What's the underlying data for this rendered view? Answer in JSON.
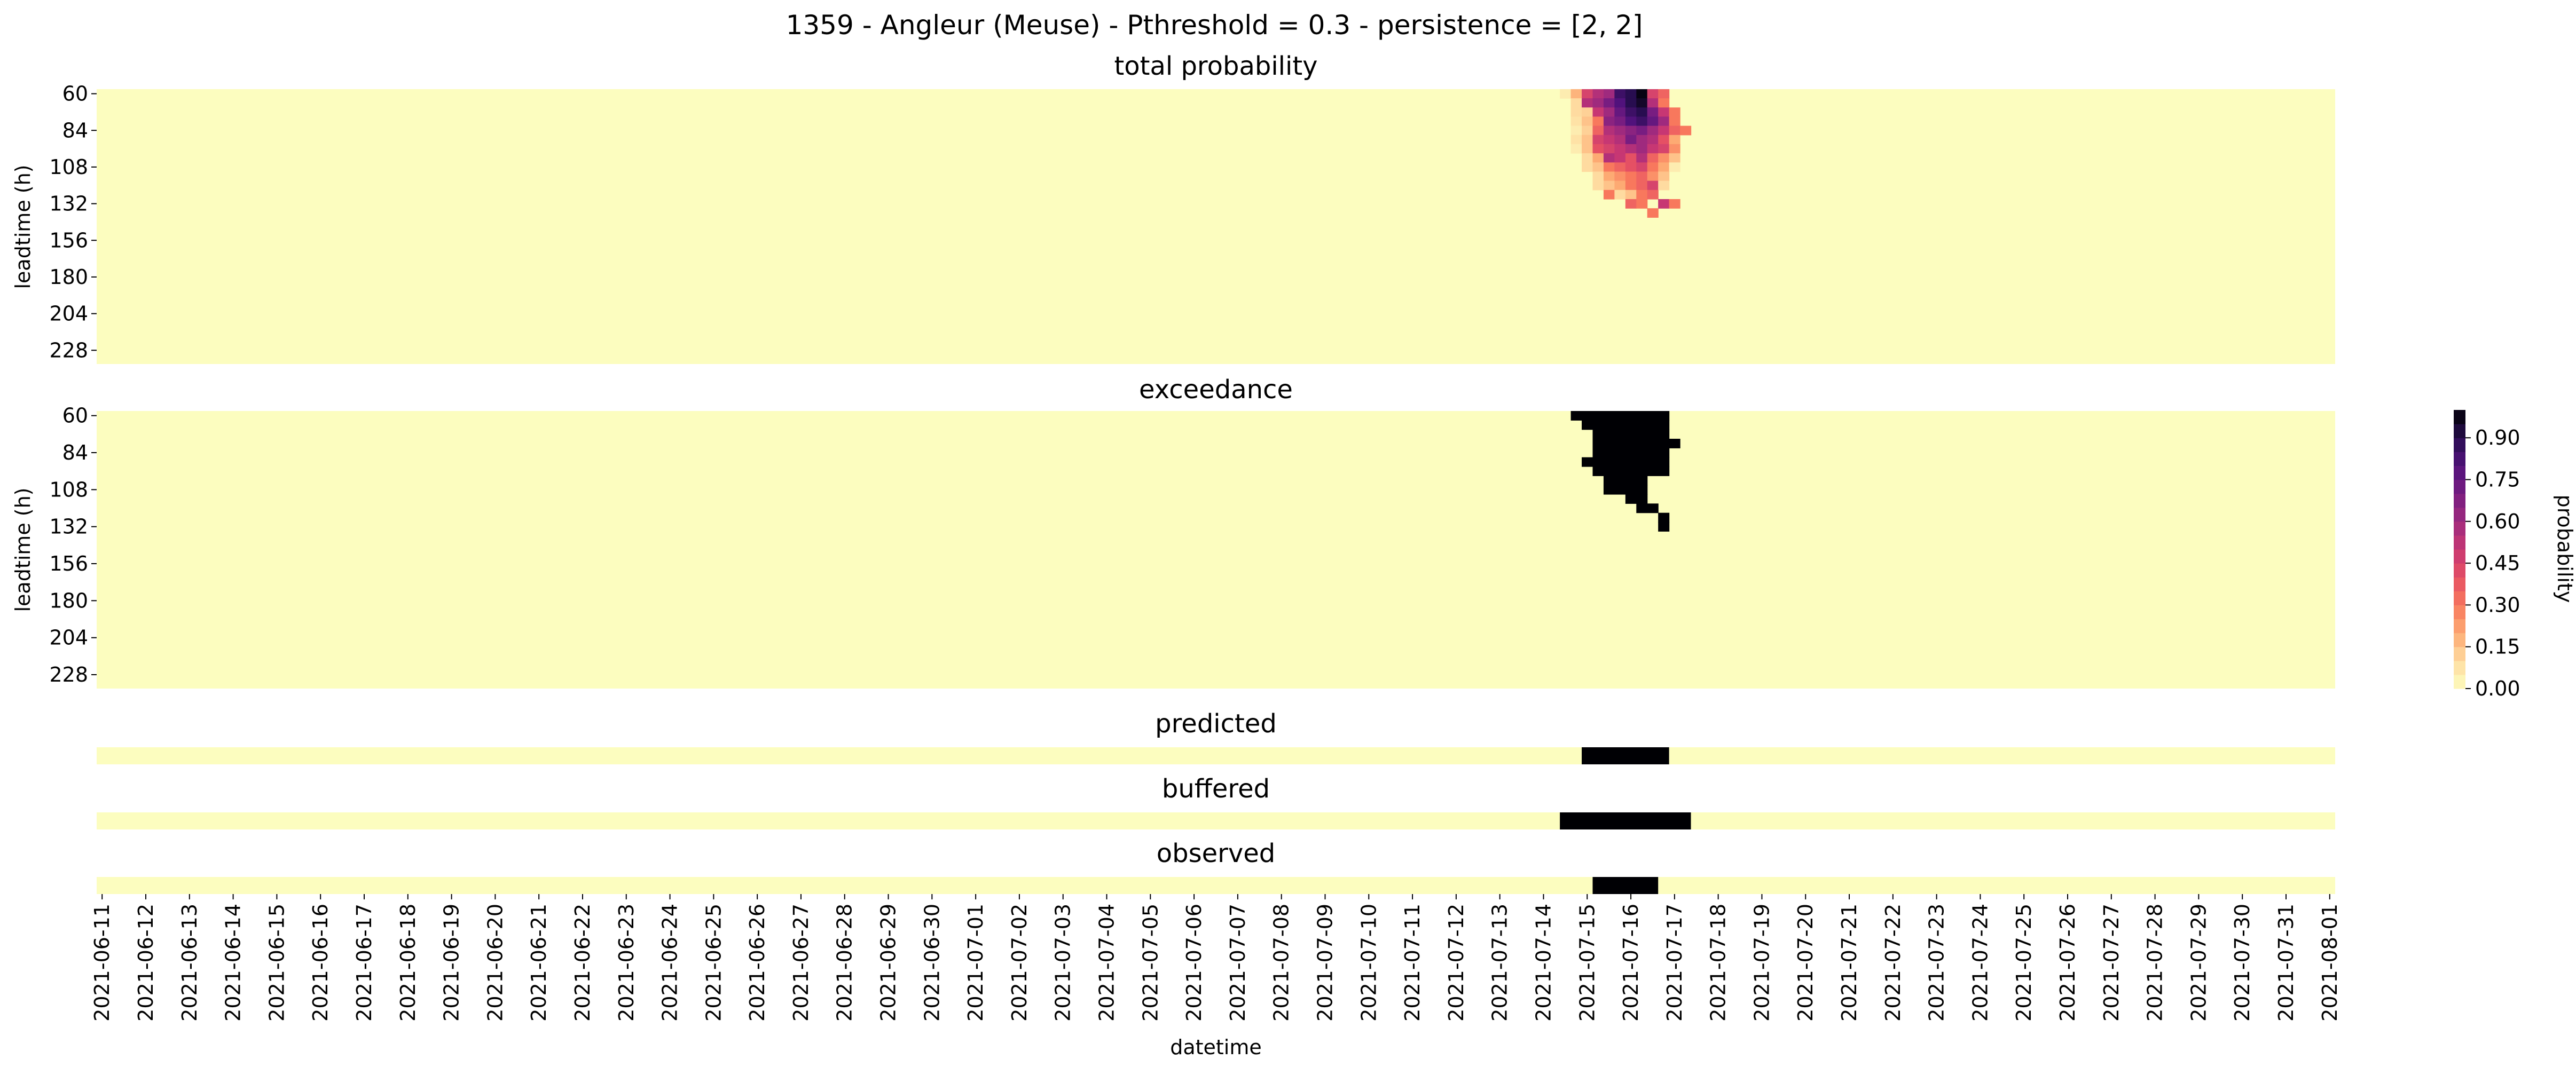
{
  "title": "1359 - Angleur (Meuse) - Pthreshold = 0.3 - persistence = [2, 2]",
  "colors": {
    "background": "#fcfdbf",
    "max": "#000004"
  },
  "chart_data": [
    {
      "type": "heatmap",
      "title": "total probability",
      "ylabel": "leadtime (h)",
      "yticks": [
        "60",
        "84",
        "108",
        "132",
        "156",
        "180",
        "204",
        "228"
      ],
      "y_range": [
        60,
        240
      ],
      "step_hours": 6,
      "x_range": [
        "2021-06-11",
        "2021-08-01"
      ],
      "colormap": "magma_r",
      "cells": [
        {
          "t": "2021-07-14 12:00",
          "l": 60,
          "v": 0.05
        },
        {
          "t": "2021-07-14 18:00",
          "l": 60,
          "v": 0.18
        },
        {
          "t": "2021-07-15 00:00",
          "l": 60,
          "v": 0.45
        },
        {
          "t": "2021-07-15 06:00",
          "l": 60,
          "v": 0.55
        },
        {
          "t": "2021-07-15 12:00",
          "l": 60,
          "v": 0.6
        },
        {
          "t": "2021-07-15 18:00",
          "l": 60,
          "v": 0.85
        },
        {
          "t": "2021-07-16 00:00",
          "l": 60,
          "v": 0.9
        },
        {
          "t": "2021-07-16 06:00",
          "l": 60,
          "v": 0.98
        },
        {
          "t": "2021-07-16 12:00",
          "l": 60,
          "v": 0.45
        },
        {
          "t": "2021-07-16 18:00",
          "l": 60,
          "v": 0.35
        },
        {
          "t": "2021-07-14 18:00",
          "l": 66,
          "v": 0.1
        },
        {
          "t": "2021-07-15 00:00",
          "l": 66,
          "v": 0.55
        },
        {
          "t": "2021-07-15 06:00",
          "l": 66,
          "v": 0.6
        },
        {
          "t": "2021-07-15 12:00",
          "l": 66,
          "v": 0.7
        },
        {
          "t": "2021-07-15 18:00",
          "l": 66,
          "v": 0.8
        },
        {
          "t": "2021-07-16 00:00",
          "l": 66,
          "v": 0.9
        },
        {
          "t": "2021-07-16 06:00",
          "l": 66,
          "v": 0.95
        },
        {
          "t": "2021-07-16 12:00",
          "l": 66,
          "v": 0.55
        },
        {
          "t": "2021-07-16 18:00",
          "l": 66,
          "v": 0.3
        },
        {
          "t": "2021-07-14 18:00",
          "l": 72,
          "v": 0.1
        },
        {
          "t": "2021-07-15 00:00",
          "l": 72,
          "v": 0.12
        },
        {
          "t": "2021-07-15 06:00",
          "l": 72,
          "v": 0.5
        },
        {
          "t": "2021-07-15 12:00",
          "l": 72,
          "v": 0.6
        },
        {
          "t": "2021-07-15 18:00",
          "l": 72,
          "v": 0.75
        },
        {
          "t": "2021-07-16 00:00",
          "l": 72,
          "v": 0.85
        },
        {
          "t": "2021-07-16 06:00",
          "l": 72,
          "v": 0.9
        },
        {
          "t": "2021-07-16 12:00",
          "l": 72,
          "v": 0.7
        },
        {
          "t": "2021-07-16 18:00",
          "l": 72,
          "v": 0.5
        },
        {
          "t": "2021-07-17 00:00",
          "l": 72,
          "v": 0.3
        },
        {
          "t": "2021-07-14 18:00",
          "l": 78,
          "v": 0.08
        },
        {
          "t": "2021-07-15 00:00",
          "l": 78,
          "v": 0.15
        },
        {
          "t": "2021-07-15 06:00",
          "l": 78,
          "v": 0.3
        },
        {
          "t": "2021-07-15 12:00",
          "l": 78,
          "v": 0.65
        },
        {
          "t": "2021-07-15 18:00",
          "l": 78,
          "v": 0.7
        },
        {
          "t": "2021-07-16 00:00",
          "l": 78,
          "v": 0.8
        },
        {
          "t": "2021-07-16 06:00",
          "l": 78,
          "v": 0.85
        },
        {
          "t": "2021-07-16 12:00",
          "l": 78,
          "v": 0.75
        },
        {
          "t": "2021-07-16 18:00",
          "l": 78,
          "v": 0.6
        },
        {
          "t": "2021-07-17 00:00",
          "l": 78,
          "v": 0.3
        },
        {
          "t": "2021-07-14 18:00",
          "l": 84,
          "v": 0.05
        },
        {
          "t": "2021-07-15 00:00",
          "l": 84,
          "v": 0.12
        },
        {
          "t": "2021-07-15 06:00",
          "l": 84,
          "v": 0.35
        },
        {
          "t": "2021-07-15 12:00",
          "l": 84,
          "v": 0.55
        },
        {
          "t": "2021-07-15 18:00",
          "l": 84,
          "v": 0.6
        },
        {
          "t": "2021-07-16 00:00",
          "l": 84,
          "v": 0.65
        },
        {
          "t": "2021-07-16 06:00",
          "l": 84,
          "v": 0.7
        },
        {
          "t": "2021-07-16 12:00",
          "l": 84,
          "v": 0.6
        },
        {
          "t": "2021-07-16 18:00",
          "l": 84,
          "v": 0.5
        },
        {
          "t": "2021-07-17 00:00",
          "l": 84,
          "v": 0.35
        },
        {
          "t": "2021-07-17 06:00",
          "l": 84,
          "v": 0.3
        },
        {
          "t": "2021-07-14 18:00",
          "l": 90,
          "v": 0.08
        },
        {
          "t": "2021-07-15 00:00",
          "l": 90,
          "v": 0.15
        },
        {
          "t": "2021-07-15 06:00",
          "l": 90,
          "v": 0.45
        },
        {
          "t": "2021-07-15 12:00",
          "l": 90,
          "v": 0.5
        },
        {
          "t": "2021-07-15 18:00",
          "l": 90,
          "v": 0.55
        },
        {
          "t": "2021-07-16 00:00",
          "l": 90,
          "v": 0.7
        },
        {
          "t": "2021-07-16 06:00",
          "l": 90,
          "v": 0.6
        },
        {
          "t": "2021-07-16 12:00",
          "l": 90,
          "v": 0.55
        },
        {
          "t": "2021-07-16 18:00",
          "l": 90,
          "v": 0.4
        },
        {
          "t": "2021-07-17 00:00",
          "l": 90,
          "v": 0.2
        },
        {
          "t": "2021-07-14 18:00",
          "l": 96,
          "v": 0.05
        },
        {
          "t": "2021-07-15 00:00",
          "l": 96,
          "v": 0.15
        },
        {
          "t": "2021-07-15 06:00",
          "l": 96,
          "v": 0.4
        },
        {
          "t": "2021-07-15 12:00",
          "l": 96,
          "v": 0.45
        },
        {
          "t": "2021-07-15 18:00",
          "l": 96,
          "v": 0.5
        },
        {
          "t": "2021-07-16 00:00",
          "l": 96,
          "v": 0.55
        },
        {
          "t": "2021-07-16 06:00",
          "l": 96,
          "v": 0.6
        },
        {
          "t": "2021-07-16 12:00",
          "l": 96,
          "v": 0.5
        },
        {
          "t": "2021-07-16 18:00",
          "l": 96,
          "v": 0.45
        },
        {
          "t": "2021-07-17 00:00",
          "l": 96,
          "v": 0.25
        },
        {
          "t": "2021-07-15 00:00",
          "l": 102,
          "v": 0.1
        },
        {
          "t": "2021-07-15 06:00",
          "l": 102,
          "v": 0.2
        },
        {
          "t": "2021-07-15 12:00",
          "l": 102,
          "v": 0.55
        },
        {
          "t": "2021-07-15 18:00",
          "l": 102,
          "v": 0.5
        },
        {
          "t": "2021-07-16 00:00",
          "l": 102,
          "v": 0.4
        },
        {
          "t": "2021-07-16 06:00",
          "l": 102,
          "v": 0.55
        },
        {
          "t": "2021-07-16 12:00",
          "l": 102,
          "v": 0.35
        },
        {
          "t": "2021-07-16 18:00",
          "l": 102,
          "v": 0.25
        },
        {
          "t": "2021-07-17 00:00",
          "l": 102,
          "v": 0.15
        },
        {
          "t": "2021-07-15 00:00",
          "l": 108,
          "v": 0.1
        },
        {
          "t": "2021-07-15 06:00",
          "l": 108,
          "v": 0.15
        },
        {
          "t": "2021-07-15 12:00",
          "l": 108,
          "v": 0.3
        },
        {
          "t": "2021-07-15 18:00",
          "l": 108,
          "v": 0.35
        },
        {
          "t": "2021-07-16 00:00",
          "l": 108,
          "v": 0.4
        },
        {
          "t": "2021-07-16 06:00",
          "l": 108,
          "v": 0.45
        },
        {
          "t": "2021-07-16 12:00",
          "l": 108,
          "v": 0.3
        },
        {
          "t": "2021-07-16 18:00",
          "l": 108,
          "v": 0.2
        },
        {
          "t": "2021-07-17 00:00",
          "l": 108,
          "v": 0.05
        },
        {
          "t": "2021-07-15 06:00",
          "l": 114,
          "v": 0.1
        },
        {
          "t": "2021-07-15 12:00",
          "l": 114,
          "v": 0.2
        },
        {
          "t": "2021-07-15 18:00",
          "l": 114,
          "v": 0.25
        },
        {
          "t": "2021-07-16 00:00",
          "l": 114,
          "v": 0.3
        },
        {
          "t": "2021-07-16 06:00",
          "l": 114,
          "v": 0.35
        },
        {
          "t": "2021-07-16 12:00",
          "l": 114,
          "v": 0.25
        },
        {
          "t": "2021-07-16 18:00",
          "l": 114,
          "v": 0.15
        },
        {
          "t": "2021-07-15 06:00",
          "l": 120,
          "v": 0.1
        },
        {
          "t": "2021-07-15 12:00",
          "l": 120,
          "v": 0.15
        },
        {
          "t": "2021-07-15 18:00",
          "l": 120,
          "v": 0.2
        },
        {
          "t": "2021-07-16 00:00",
          "l": 120,
          "v": 0.3
        },
        {
          "t": "2021-07-16 06:00",
          "l": 120,
          "v": 0.35
        },
        {
          "t": "2021-07-16 12:00",
          "l": 120,
          "v": 0.45
        },
        {
          "t": "2021-07-16 18:00",
          "l": 120,
          "v": 0.1
        },
        {
          "t": "2021-07-15 12:00",
          "l": 126,
          "v": 0.3
        },
        {
          "t": "2021-07-15 18:00",
          "l": 126,
          "v": 0.1
        },
        {
          "t": "2021-07-16 00:00",
          "l": 126,
          "v": 0.15
        },
        {
          "t": "2021-07-16 06:00",
          "l": 126,
          "v": 0.3
        },
        {
          "t": "2021-07-16 12:00",
          "l": 126,
          "v": 0.35
        },
        {
          "t": "2021-07-16 00:00",
          "l": 132,
          "v": 0.35
        },
        {
          "t": "2021-07-16 06:00",
          "l": 132,
          "v": 0.3
        },
        {
          "t": "2021-07-16 18:00",
          "l": 132,
          "v": 0.5
        },
        {
          "t": "2021-07-17 00:00",
          "l": 132,
          "v": 0.3
        },
        {
          "t": "2021-07-16 12:00",
          "l": 138,
          "v": 0.3
        }
      ]
    },
    {
      "type": "heatmap",
      "title": "exceedance",
      "ylabel": "leadtime (h)",
      "yticks": [
        "60",
        "84",
        "108",
        "132",
        "156",
        "180",
        "204",
        "228"
      ],
      "y_range": [
        60,
        240
      ],
      "step_hours": 6,
      "x_range": [
        "2021-06-11",
        "2021-08-01"
      ],
      "rows": [
        {
          "l": 60,
          "from": "2021-07-14 18:00",
          "to": "2021-07-16 18:00"
        },
        {
          "l": 66,
          "from": "2021-07-15 00:00",
          "to": "2021-07-16 18:00"
        },
        {
          "l": 72,
          "from": "2021-07-15 06:00",
          "to": "2021-07-16 18:00"
        },
        {
          "l": 78,
          "from": "2021-07-15 06:00",
          "to": "2021-07-17 00:00"
        },
        {
          "l": 84,
          "from": "2021-07-15 06:00",
          "to": "2021-07-16 18:00"
        },
        {
          "l": 90,
          "from": "2021-07-15 00:00",
          "to": "2021-07-16 18:00"
        },
        {
          "l": 96,
          "from": "2021-07-15 06:00",
          "to": "2021-07-16 18:00"
        },
        {
          "l": 102,
          "from": "2021-07-15 12:00",
          "to": "2021-07-16 06:00"
        },
        {
          "l": 108,
          "from": "2021-07-15 12:00",
          "to": "2021-07-16 06:00"
        },
        {
          "l": 114,
          "from": "2021-07-16 00:00",
          "to": "2021-07-16 06:00"
        },
        {
          "l": 120,
          "from": "2021-07-16 06:00",
          "to": "2021-07-16 12:00"
        },
        {
          "l": 126,
          "from": "2021-07-16 18:00",
          "to": "2021-07-16 18:00"
        },
        {
          "l": 132,
          "from": "2021-07-16 18:00",
          "to": "2021-07-16 18:00"
        }
      ]
    },
    {
      "type": "heatmap",
      "title": "predicted",
      "x_range": [
        "2021-06-11",
        "2021-08-01"
      ],
      "events": [
        {
          "from": "2021-07-15 00:00",
          "to": "2021-07-16 18:00"
        }
      ]
    },
    {
      "type": "heatmap",
      "title": "buffered",
      "x_range": [
        "2021-06-11",
        "2021-08-01"
      ],
      "events": [
        {
          "from": "2021-07-14 12:00",
          "to": "2021-07-17 06:00"
        }
      ]
    },
    {
      "type": "heatmap",
      "title": "observed",
      "xlabel": "datetime",
      "x_range": [
        "2021-06-11",
        "2021-08-01"
      ],
      "events": [
        {
          "from": "2021-07-15 06:00",
          "to": "2021-07-16 12:00"
        }
      ]
    }
  ],
  "xticks": [
    "2021-06-11",
    "2021-06-12",
    "2021-06-13",
    "2021-06-14",
    "2021-06-15",
    "2021-06-16",
    "2021-06-17",
    "2021-06-18",
    "2021-06-19",
    "2021-06-20",
    "2021-06-21",
    "2021-06-22",
    "2021-06-23",
    "2021-06-24",
    "2021-06-25",
    "2021-06-26",
    "2021-06-27",
    "2021-06-28",
    "2021-06-29",
    "2021-06-30",
    "2021-07-01",
    "2021-07-02",
    "2021-07-03",
    "2021-07-04",
    "2021-07-05",
    "2021-07-06",
    "2021-07-07",
    "2021-07-08",
    "2021-07-09",
    "2021-07-10",
    "2021-07-11",
    "2021-07-12",
    "2021-07-13",
    "2021-07-14",
    "2021-07-15",
    "2021-07-16",
    "2021-07-17",
    "2021-07-18",
    "2021-07-19",
    "2021-07-20",
    "2021-07-21",
    "2021-07-22",
    "2021-07-23",
    "2021-07-24",
    "2021-07-25",
    "2021-07-26",
    "2021-07-27",
    "2021-07-28",
    "2021-07-29",
    "2021-07-30",
    "2021-07-31",
    "2021-08-01"
  ],
  "xlabel": "datetime",
  "colorbar": {
    "label": "probability",
    "ticks": [
      "0.00",
      "0.15",
      "0.30",
      "0.45",
      "0.60",
      "0.75",
      "0.90"
    ],
    "range": [
      0,
      1
    ]
  }
}
